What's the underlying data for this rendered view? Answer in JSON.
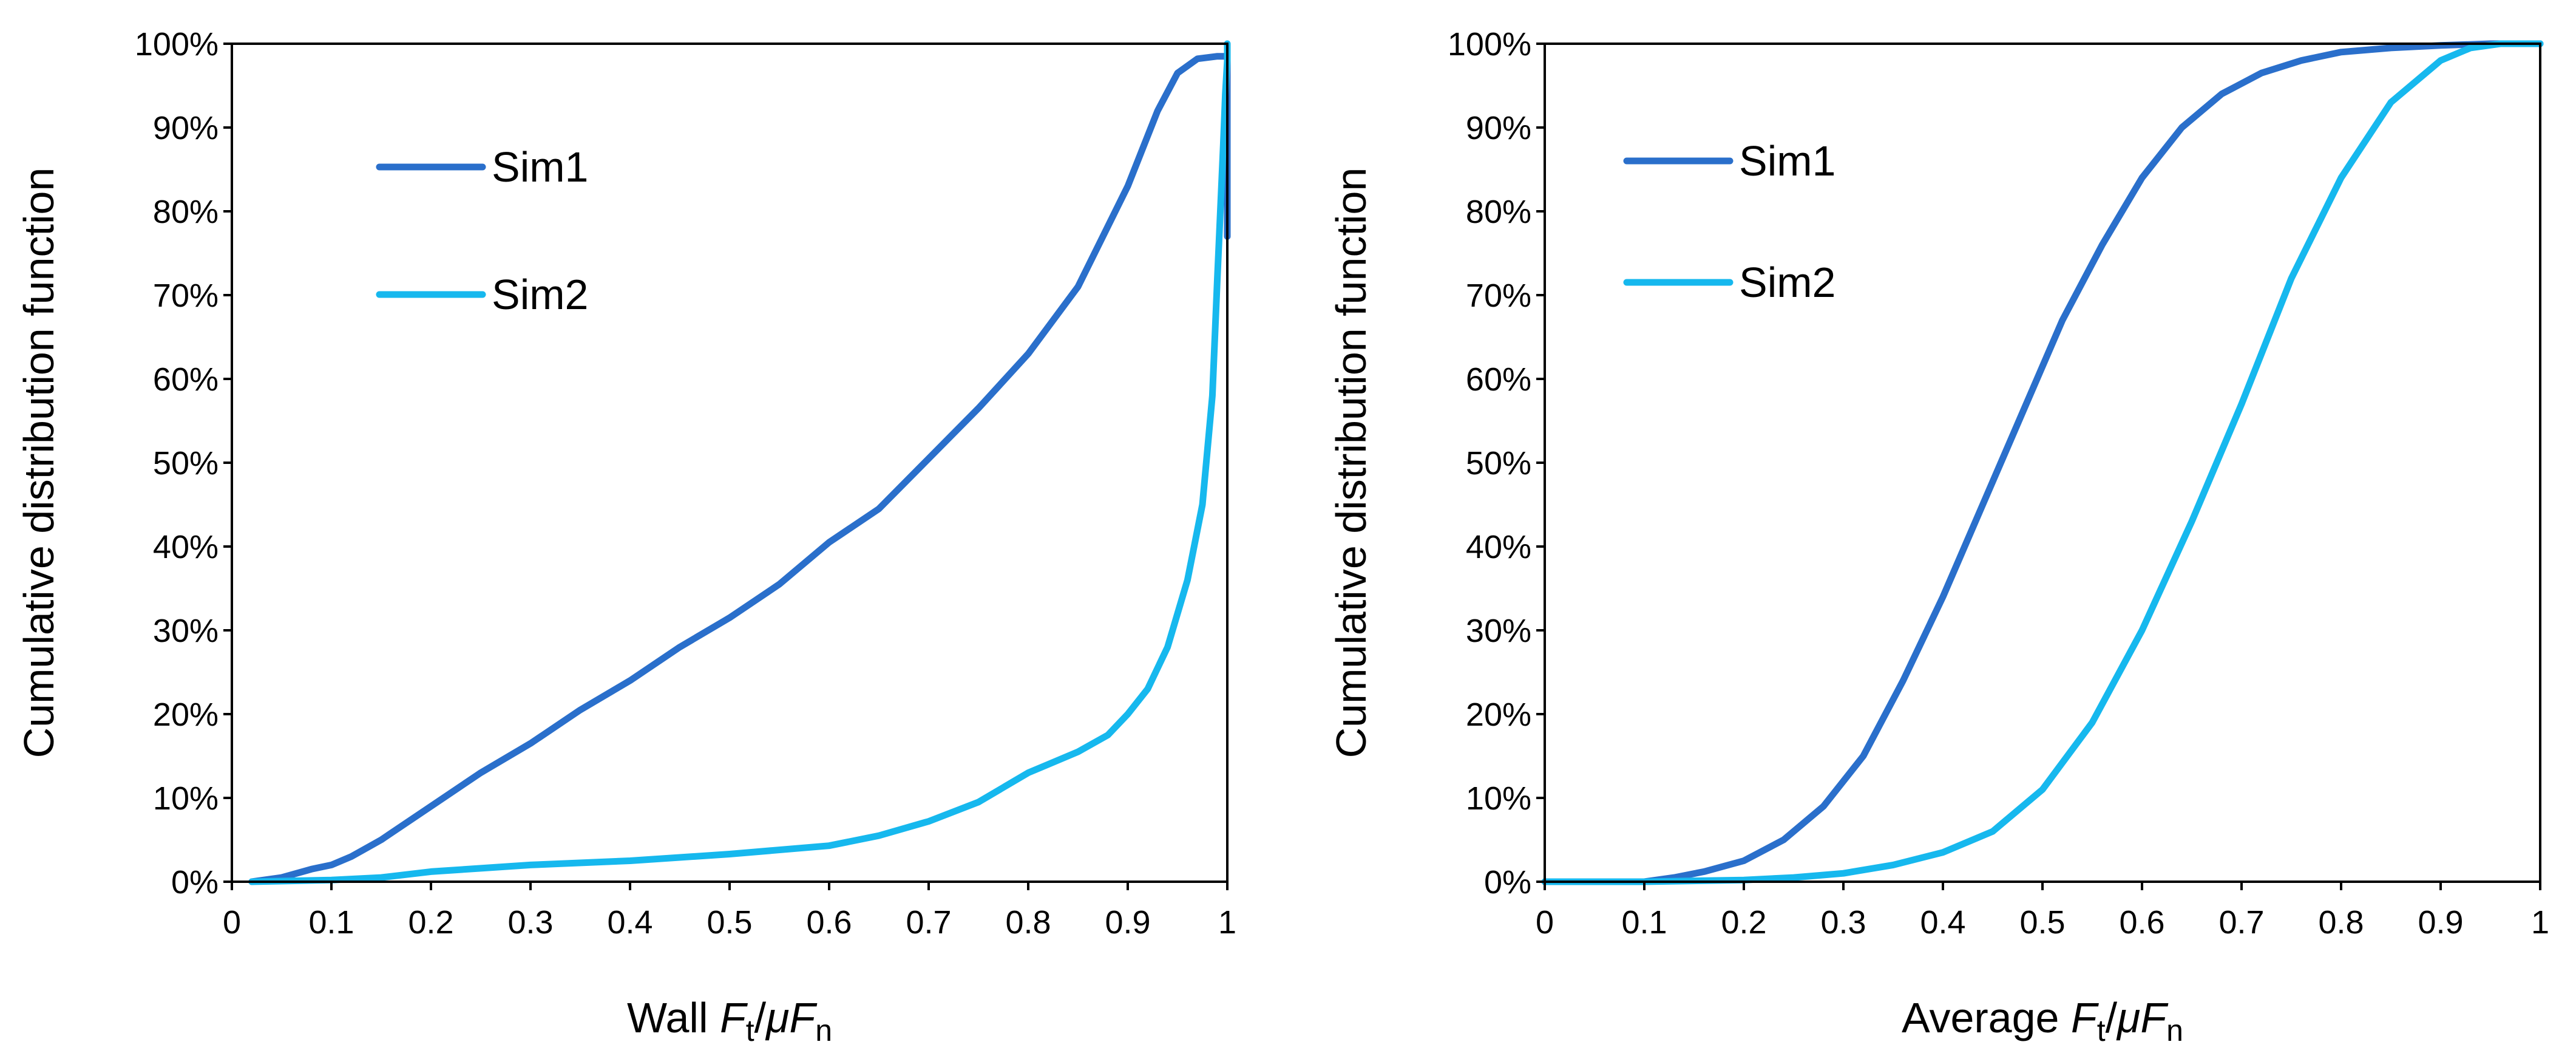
{
  "chart_data": [
    {
      "type": "line",
      "title": "",
      "xlabel": {
        "prefix": "Wall ",
        "f": "F",
        "t": "t",
        "slash": "/",
        "mu": "μ",
        "n": "n"
      },
      "ylabel": "Cumulative distribution function",
      "xlim": [
        0,
        1
      ],
      "ylim": [
        0,
        1
      ],
      "x_ticks": [
        "0",
        "0.1",
        "0.2",
        "0.3",
        "0.4",
        "0.5",
        "0.6",
        "0.7",
        "0.8",
        "0.9",
        "1"
      ],
      "y_ticks": [
        "0%",
        "10%",
        "20%",
        "30%",
        "40%",
        "50%",
        "60%",
        "70%",
        "80%",
        "90%",
        "100%"
      ],
      "legend_position": "upper-left",
      "series": [
        {
          "name": "Sim1",
          "color": "#2a6fcb",
          "x": [
            0.02,
            0.05,
            0.08,
            0.1,
            0.12,
            0.15,
            0.2,
            0.25,
            0.3,
            0.35,
            0.4,
            0.45,
            0.5,
            0.55,
            0.6,
            0.65,
            0.7,
            0.75,
            0.8,
            0.85,
            0.9,
            0.93,
            0.95,
            0.97,
            0.99,
            1.0,
            1.0
          ],
          "y": [
            0.0,
            0.005,
            0.015,
            0.02,
            0.03,
            0.05,
            0.09,
            0.13,
            0.165,
            0.205,
            0.24,
            0.28,
            0.315,
            0.355,
            0.405,
            0.445,
            0.505,
            0.565,
            0.63,
            0.71,
            0.83,
            0.92,
            0.965,
            0.982,
            0.985,
            0.985,
            0.77
          ]
        },
        {
          "name": "Sim2",
          "color": "#16b8ee",
          "x": [
            0.02,
            0.1,
            0.15,
            0.2,
            0.25,
            0.3,
            0.4,
            0.5,
            0.6,
            0.65,
            0.7,
            0.75,
            0.8,
            0.82,
            0.85,
            0.88,
            0.9,
            0.92,
            0.94,
            0.96,
            0.975,
            0.985,
            0.99,
            0.993,
            0.996,
            0.998,
            1.0,
            1.0
          ],
          "y": [
            0.0,
            0.002,
            0.005,
            0.012,
            0.016,
            0.02,
            0.025,
            0.033,
            0.043,
            0.055,
            0.072,
            0.095,
            0.13,
            0.14,
            0.155,
            0.175,
            0.2,
            0.23,
            0.28,
            0.36,
            0.45,
            0.58,
            0.72,
            0.8,
            0.88,
            0.94,
            0.98,
            1.0
          ]
        }
      ]
    },
    {
      "type": "line",
      "title": "",
      "xlabel": {
        "prefix": "Average ",
        "f": "F",
        "t": "t",
        "slash": "/",
        "mu": "μ",
        "n": "n"
      },
      "ylabel": "Cumulative distribution function",
      "xlim": [
        0,
        1
      ],
      "ylim": [
        0,
        1
      ],
      "x_ticks": [
        "0",
        "0.1",
        "0.2",
        "0.3",
        "0.4",
        "0.5",
        "0.6",
        "0.7",
        "0.8",
        "0.9",
        "1"
      ],
      "y_ticks": [
        "0%",
        "10%",
        "20%",
        "30%",
        "40%",
        "50%",
        "60%",
        "70%",
        "80%",
        "90%",
        "100%"
      ],
      "legend_position": "upper-left",
      "series": [
        {
          "name": "Sim1",
          "color": "#2a6fcb",
          "x": [
            0.0,
            0.1,
            0.13,
            0.16,
            0.2,
            0.24,
            0.28,
            0.32,
            0.36,
            0.4,
            0.44,
            0.48,
            0.52,
            0.56,
            0.6,
            0.64,
            0.68,
            0.72,
            0.76,
            0.8,
            0.85,
            0.9,
            0.95,
            1.0
          ],
          "y": [
            0.0,
            0.0,
            0.005,
            0.012,
            0.025,
            0.05,
            0.09,
            0.15,
            0.24,
            0.34,
            0.45,
            0.56,
            0.67,
            0.76,
            0.84,
            0.9,
            0.94,
            0.965,
            0.98,
            0.99,
            0.995,
            0.998,
            1.0,
            1.0
          ]
        },
        {
          "name": "Sim2",
          "color": "#16b8ee",
          "x": [
            0.0,
            0.1,
            0.2,
            0.25,
            0.3,
            0.35,
            0.4,
            0.45,
            0.5,
            0.55,
            0.6,
            0.65,
            0.7,
            0.75,
            0.8,
            0.85,
            0.9,
            0.93,
            0.96,
            1.0
          ],
          "y": [
            0.0,
            0.0,
            0.002,
            0.005,
            0.01,
            0.02,
            0.035,
            0.06,
            0.11,
            0.19,
            0.3,
            0.43,
            0.57,
            0.72,
            0.84,
            0.93,
            0.98,
            0.995,
            1.0,
            1.0
          ]
        }
      ]
    }
  ]
}
